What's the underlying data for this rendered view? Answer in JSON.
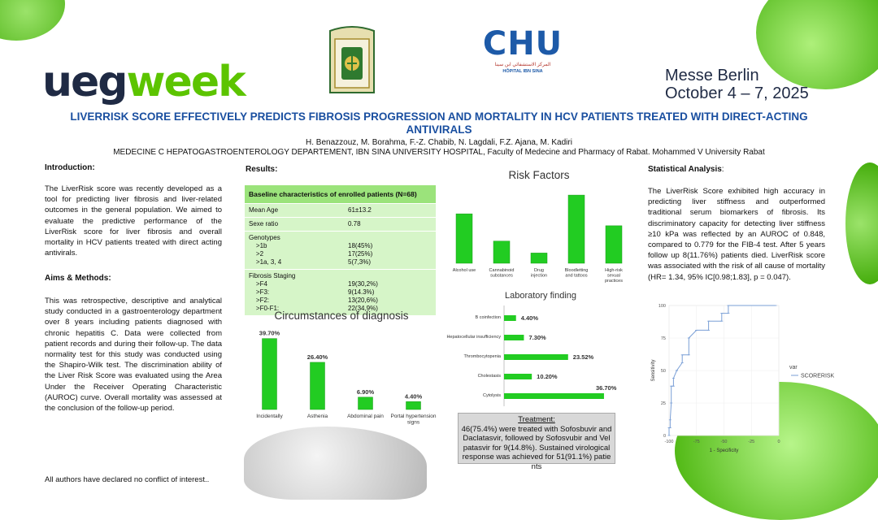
{
  "header": {
    "logo_word_1": "ueg",
    "logo_word_2": "week",
    "venue": "Messe Berlin",
    "dates": "October 4 – 7, 2025",
    "chu_logo": "CHU",
    "chu_arabic": "المركز الاستشفائي ابن سينا",
    "chu_subtitle": "HÔPITAL IBN SINA"
  },
  "poster": {
    "title": "LIVERRISK SCORE EFFECTIVELY PREDICTS FIBROSIS PROGRESSION AND MORTALITY IN HCV PATIENTS TREATED WITH DIRECT-ACTING ANTIVIRALS",
    "authors": "H. Benazzouz,  M. Borahma,  F.-Z. Chabib,  N. Lagdali,  F.Z. Ajana,  M. Kadiri",
    "affiliation": "MEDECINE C HEPATOGASTROENTEROLOGY DEPARTEMENT, IBN SINA UNIVERSITY HOSPITAL, Faculty of Medecine and Pharmacy of Rabat. Mohammed V University Rabat"
  },
  "intro": {
    "heading": "Introduction:",
    "text": "The LiverRisk score was recently developed as a tool for predicting liver fibrosis and liver-related outcomes in the general population. We aimed to evaluate the predictive performance of the LiverRisk score for liver fibrosis and overall mortality in HCV patients treated with direct acting antivirals."
  },
  "methods": {
    "heading": "Aims & Methods:",
    "text": "This was retrospective, descriptive and analytical study conducted in a gastroenterology department over 8 years including patients diagnosed with chronic hepatitis C. Data were collected from patient records and during their follow-up. The data normality test for this study was conducted using the Shapiro-Wilk test. The discrimination ability of the Liver Risk Score was evaluated using the Area Under the Receiver Operating Characteristic (AUROC) curve. Overall mortality was assessed at the conclusion of the follow-up period."
  },
  "disclosure": "All authors have declared no conflict of interest..",
  "results": {
    "heading": "Results:",
    "table": {
      "title": "Baseline characteristics of enrolled patients (N=68)",
      "rows": [
        {
          "label": "Mean Age",
          "value": "61±13.2"
        },
        {
          "label": "Sexe ratio",
          "value": "0.78"
        },
        {
          "label": "Genotypes\n    >1b\n    >2\n    >1a, 3, 4",
          "value": "\n18(45%)\n17(25%)\n5(7,3%)"
        },
        {
          "label": "Fibrosis Staging\n    >F4\n    >F3:\n    >F2:\n    >F0-F1:",
          "value": "\n19(30,2%)\n9(14.3%)\n13(20,6%)\n22(34,9%)"
        }
      ]
    }
  },
  "stats": {
    "heading": "Statistical Analysis",
    "heading_suffix": ":",
    "text": "The LiverRisk Score exhibited high accuracy in predicting liver stiffness and outperformed traditional serum biomarkers of fibrosis. Its discriminatory capacity for detecting liver stiffness ≥10 kPa was reflected by an AUROC of 0.848, compared to 0.779 for the FIB-4 test. After 5 years follow up 8(11.76%) patients died. LiverRisk score was associated with the risk of all cause of mortality (HR= 1.34, 95% IC[0.98;1.83], p = 0.047)."
  },
  "treatment": {
    "heading": "Treatment:",
    "text": "46(75.4%) were treated with Sofosbuvir and Daclatasvir, followed by Sofosvubir and Velpatasvir for 9(14.8%). Sustained virological response was achieved for 51(91.1%) patients"
  },
  "colors": {
    "accent_green": "#22cc22",
    "title_blue": "#1a4fa0",
    "roc_blue": "#7a9fd6"
  },
  "chart_data": [
    {
      "id": "circumstances",
      "type": "bar",
      "title": "Circumstances of diagnosis",
      "categories": [
        "Incidentally",
        "Asthenia",
        "Abdominal pain",
        "Portal hypertension signs"
      ],
      "values": [
        39.7,
        26.4,
        6.9,
        4.4
      ],
      "labels": [
        "39.70%",
        "26.40%",
        "6.90%",
        "4.40%"
      ],
      "ylim": [
        0,
        40
      ]
    },
    {
      "id": "risk_factors",
      "type": "bar",
      "title": "Risk Factors",
      "categories": [
        "Alcohol use",
        "Cannabinoid substances",
        "Drug injection",
        "Bloodletting and tattoos",
        "High-risk sexual practices"
      ],
      "values": [
        58,
        26,
        12,
        80,
        44
      ],
      "ylim": [
        0,
        82
      ]
    },
    {
      "id": "laboratory",
      "type": "bar",
      "orientation": "horizontal",
      "title": "Laboratory finding",
      "categories": [
        "B coinfection",
        "Hepatocellular insufficiency",
        "Thrombocytopenia",
        "Cholestasis",
        "Cytolysis"
      ],
      "values": [
        4.4,
        7.3,
        23.52,
        10.2,
        36.7
      ],
      "labels": [
        "4.40%",
        "7.30%",
        "23.52%",
        "10.20%",
        "36.70%"
      ],
      "xlim": [
        0,
        40
      ]
    },
    {
      "id": "roc",
      "type": "line",
      "xlabel": "1 - Specificity",
      "ylabel": "Sensitivity",
      "xticks": [
        "-100",
        "-75",
        "-50",
        "-25",
        "0"
      ],
      "yticks": [
        "0",
        "25",
        "50",
        "75",
        "100"
      ],
      "xlim": [
        -100,
        0
      ],
      "ylim": [
        0,
        100
      ],
      "legend_title": "var",
      "legend_position": "right",
      "series": [
        {
          "name": "SCORERISK",
          "x": [
            -100,
            -100,
            -99,
            -99,
            -98,
            -98,
            -96,
            -96,
            -93,
            -93,
            -88,
            -88,
            -82,
            -82,
            -75,
            -75,
            -64,
            -64,
            -52,
            -52,
            -46,
            -46,
            -40,
            -40,
            -30,
            -20,
            -10,
            -3
          ],
          "y": [
            0,
            6,
            6,
            12,
            25,
            38,
            38,
            44,
            50,
            50,
            56,
            62,
            62,
            75,
            81,
            81,
            81,
            88,
            88,
            94,
            94,
            100,
            100,
            100,
            100,
            100,
            100,
            100
          ]
        }
      ]
    }
  ]
}
